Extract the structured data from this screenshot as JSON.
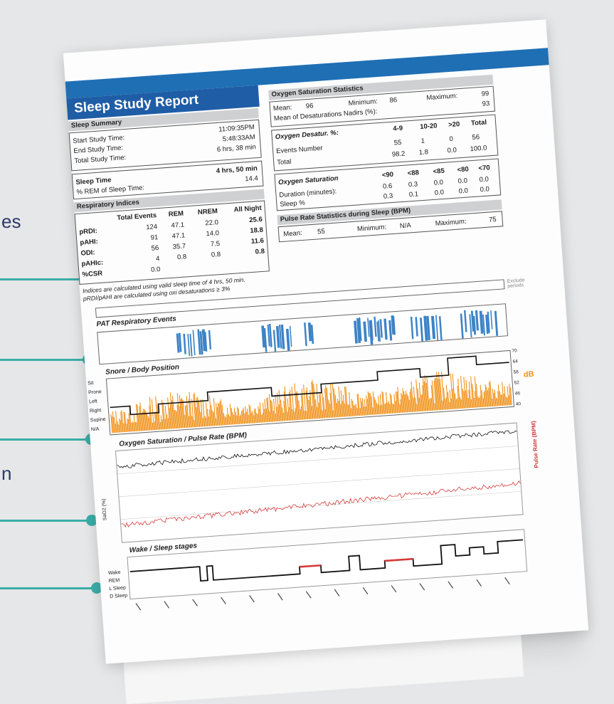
{
  "background_texts": [
    "es",
    "n"
  ],
  "colors": {
    "accent_teal": "#3aaea7",
    "report_blue": "#1f5da6",
    "orange": "#f0921b",
    "pat_blue": "#3d83c7",
    "red": "#d63a3a"
  },
  "report": {
    "title": "Sleep Study Report",
    "sleep_summary": {
      "heading": "Sleep Summary",
      "rows": [
        {
          "label": "Start Study Time:",
          "value": "11:09:35PM"
        },
        {
          "label": "End Study Time:",
          "value": "5:48:33AM"
        },
        {
          "label": "Total Study Time:",
          "value": "6 hrs, 38 min"
        }
      ],
      "rows2": [
        {
          "label": "Sleep Time",
          "value": "4 hrs, 50 min"
        },
        {
          "label": "% REM of Sleep Time:",
          "value": "14.4"
        }
      ]
    },
    "oxygen_stats": {
      "heading": "Oxygen Saturation Statistics",
      "mean_label": "Mean:",
      "mean": "96",
      "min_label": "Minimum:",
      "min": "86",
      "max_label": "Maximum:",
      "max": "99",
      "nadir_label": "Mean of Desaturations Nadirs (%):",
      "nadir": "93",
      "desat_title": "Oxygen Desatur. %:",
      "desat_cols": [
        "4-9",
        "10-20",
        ">20",
        "Total"
      ],
      "events_label": "Events Number",
      "events": [
        "55",
        "1",
        "0",
        "56"
      ],
      "total_label": "Total",
      "total": [
        "98.2",
        "1.8",
        "0.0",
        "100.0"
      ],
      "sat_title": "Oxygen Saturation",
      "sat_cols": [
        "<90",
        "<88",
        "<85",
        "<80",
        "<70"
      ],
      "dur_label": "Duration (minutes):",
      "dur": [
        "0.6",
        "0.3",
        "0.0",
        "0.0",
        "0.0"
      ],
      "sleep_label": "Sleep %",
      "sleep": [
        "0.3",
        "0.1",
        "0.0",
        "0.0",
        "0.0"
      ]
    },
    "resp_indices": {
      "heading": "Respiratory Indices",
      "cols": [
        "Total Events",
        "REM",
        "NREM",
        "All Night"
      ],
      "rows": [
        {
          "label": "pRDI:",
          "vals": [
            "124",
            "47.1",
            "22.0",
            "25.6"
          ]
        },
        {
          "label": "pAHI:",
          "vals": [
            "91",
            "47.1",
            "14.0",
            "18.8"
          ]
        },
        {
          "label": "ODI:",
          "vals": [
            "56",
            "35.7",
            "7.5",
            "11.6"
          ]
        },
        {
          "label": "pAHIc:",
          "vals": [
            "4",
            "0.8",
            "0.8",
            "0.8"
          ]
        },
        {
          "label": "%CSR",
          "vals": [
            "0.0",
            "",
            "",
            ""
          ]
        }
      ],
      "note1": "Indices are calculated using valid sleep time of 4 hrs, 50 min.",
      "note2": "pRDI/pAHI are calculated using oxi desaturations ≥ 3%"
    },
    "pulse": {
      "heading": "Pulse Rate Statistics during Sleep (BPM)",
      "mean_label": "Mean:",
      "mean": "55",
      "min_label": "Minimum:",
      "min": "N/A",
      "max_label": "Maximum:",
      "max": "75"
    },
    "charts": {
      "pat_title": "PAT Respiratory Events",
      "exclude_label": "Exclude periods",
      "snore_title": "Snore / Body Position",
      "snore_db_label": "dB",
      "snore_ticks": [
        "70",
        "64",
        "58",
        "52",
        "46",
        "40"
      ],
      "body_positions": [
        "Sit",
        "Prone",
        "Left",
        "Right",
        "Supine",
        "N/A"
      ],
      "ox_title": "Oxygen Saturation / Pulse Rate (BPM)",
      "spo2_label": "SaO2 (%)",
      "pulse_label": "Pulse Rate (BPM)",
      "stage_title": "Wake / Sleep stages",
      "stages": [
        "Wake",
        "REM",
        "L Sleep",
        "D Sleep"
      ]
    }
  }
}
